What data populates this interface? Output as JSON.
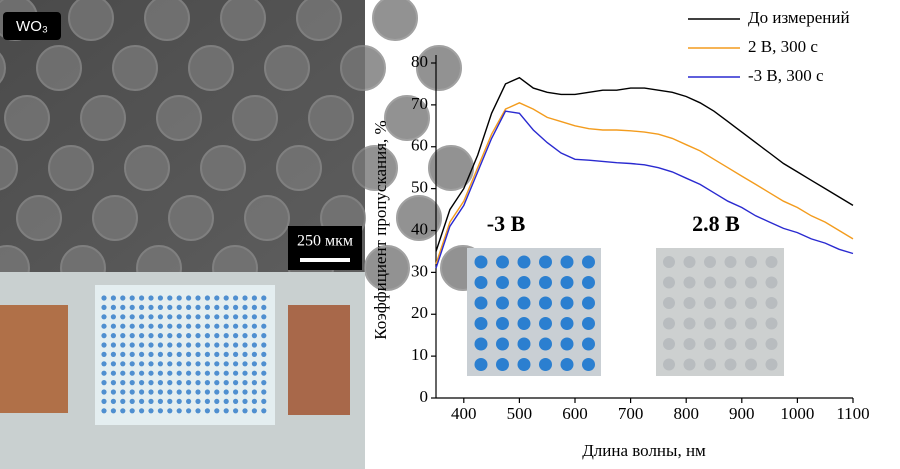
{
  "chart_data": {
    "type": "line",
    "x_label": "Длина волны, нм",
    "y_label": "Коэффициент пропускания, %",
    "x": [
      350,
      375,
      400,
      425,
      450,
      475,
      500,
      525,
      550,
      575,
      600,
      625,
      650,
      675,
      700,
      725,
      750,
      775,
      800,
      825,
      850,
      875,
      900,
      925,
      950,
      975,
      1000,
      1025,
      1050,
      1075,
      1100
    ],
    "series": [
      {
        "name": "До измерений",
        "color": "#000000",
        "values": [
          35,
          45,
          50,
          58,
          68,
          75,
          76.5,
          74,
          73,
          72.5,
          72.5,
          73,
          73.5,
          73.5,
          74,
          74,
          73.5,
          73,
          72,
          70.5,
          68.5,
          66,
          63.5,
          61,
          58.5,
          56,
          54,
          52,
          50,
          48,
          46
        ]
      },
      {
        "name": "2 В, 300 с",
        "color": "#f39c1e",
        "values": [
          32,
          42,
          47,
          55,
          63,
          69,
          70.5,
          69,
          67,
          66,
          65,
          64.3,
          64,
          64,
          63.8,
          63.5,
          63,
          62,
          60.5,
          59,
          57,
          55,
          53,
          51,
          49,
          47,
          45.5,
          43.5,
          42,
          40,
          38
        ]
      },
      {
        "name": "-3 В, 300 с",
        "color": "#2a2ad0",
        "values": [
          31,
          41,
          46,
          54,
          62,
          68.5,
          68,
          64,
          61,
          58.5,
          57,
          56.8,
          56.5,
          56.2,
          56,
          55.7,
          55,
          54,
          52.5,
          51,
          49,
          47,
          45.5,
          43.5,
          42,
          40.5,
          39.5,
          38,
          37,
          35.5,
          34.5
        ]
      }
    ],
    "xlim": [
      350,
      1100
    ],
    "xticks": [
      400,
      500,
      600,
      700,
      800,
      900,
      1000,
      1100
    ],
    "ylim": [
      0,
      80
    ],
    "yticks": [
      0,
      10,
      20,
      30,
      40,
      50,
      60,
      70,
      80
    ],
    "legend": "upper right"
  },
  "sem_image": {
    "label": "WO₃",
    "scale_bar": "250 мкм"
  },
  "insets": [
    {
      "label": "-3 В"
    },
    {
      "label": "2.8 В"
    }
  ]
}
